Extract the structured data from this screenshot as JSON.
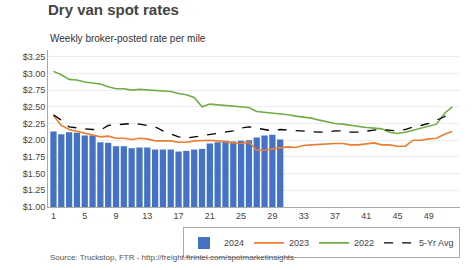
{
  "chart_data": {
    "type": "bar",
    "title": "Dry van spot rates",
    "subtitle": "Weekly broker-posted rate per mile",
    "annotations": [
      "Source: Truckstop, FTR - http://freight.ftrintel.com/spotmarketinsights"
    ],
    "xlim": [
      0.3,
      53
    ],
    "xticks": [
      1,
      5,
      9,
      13,
      17,
      21,
      25,
      29,
      33,
      37,
      41,
      45,
      49
    ],
    "ylim": [
      1.0,
      3.35
    ],
    "yticks": [
      {
        "value": 1.0,
        "label": "$1.00"
      },
      {
        "value": 1.25,
        "label": "$1.25"
      },
      {
        "value": 1.5,
        "label": "$1.50"
      },
      {
        "value": 1.75,
        "label": "$1.75"
      },
      {
        "value": 2.0,
        "label": "$2.00"
      },
      {
        "value": 2.25,
        "label": "$2.25"
      },
      {
        "value": 2.5,
        "label": "$2.50"
      },
      {
        "value": 2.75,
        "label": "$2.75"
      },
      {
        "value": 3.0,
        "label": "$3.00"
      },
      {
        "value": 3.25,
        "label": "$3.25"
      }
    ],
    "grid": true,
    "legend": "lower right",
    "series": [
      {
        "name": "2024",
        "type": "bar",
        "color": "#4472C4",
        "x": [
          1,
          2,
          3,
          4,
          5,
          6,
          7,
          8,
          9,
          10,
          11,
          12,
          13,
          14,
          15,
          16,
          17,
          18,
          19,
          20,
          21,
          22,
          23,
          24,
          25,
          26,
          27,
          28,
          29,
          30
        ],
        "values": [
          2.13,
          2.09,
          2.12,
          2.11,
          2.07,
          2.07,
          1.97,
          1.96,
          1.91,
          1.91,
          1.88,
          1.89,
          1.89,
          1.86,
          1.86,
          1.86,
          1.83,
          1.84,
          1.86,
          1.87,
          1.95,
          1.97,
          1.99,
          1.98,
          1.99,
          2.0,
          2.04,
          2.07,
          2.08,
          2.01
        ]
      },
      {
        "name": "2023",
        "type": "line",
        "color": "#ED7D31",
        "x": [
          1,
          2,
          3,
          4,
          5,
          6,
          7,
          8,
          9,
          10,
          11,
          12,
          13,
          14,
          15,
          16,
          17,
          18,
          19,
          20,
          21,
          22,
          23,
          24,
          25,
          26,
          27,
          28,
          29,
          30,
          31,
          32,
          33,
          34,
          35,
          36,
          37,
          38,
          39,
          40,
          41,
          42,
          43,
          44,
          45,
          46,
          47,
          48,
          49,
          50,
          51,
          52
        ],
        "values": [
          2.37,
          2.22,
          2.16,
          2.13,
          2.11,
          2.08,
          2.05,
          2.06,
          2.03,
          2.03,
          2.01,
          2.03,
          2.02,
          1.99,
          1.99,
          1.99,
          1.97,
          1.97,
          1.99,
          2.0,
          2.0,
          1.99,
          1.97,
          1.96,
          1.95,
          1.97,
          1.85,
          1.85,
          1.87,
          1.88,
          1.9,
          1.89,
          1.92,
          1.93,
          1.94,
          1.94,
          1.95,
          1.95,
          1.93,
          1.93,
          1.95,
          1.96,
          1.93,
          1.93,
          1.91,
          1.91,
          2.0,
          2.0,
          2.02,
          2.03,
          2.09,
          2.13
        ]
      },
      {
        "name": "2022",
        "type": "line",
        "color": "#70AD47",
        "x": [
          1,
          2,
          3,
          4,
          5,
          6,
          7,
          8,
          9,
          10,
          11,
          12,
          13,
          14,
          15,
          16,
          17,
          18,
          19,
          20,
          21,
          22,
          23,
          24,
          25,
          26,
          27,
          28,
          29,
          30,
          31,
          32,
          33,
          34,
          35,
          36,
          37,
          38,
          39,
          40,
          41,
          42,
          43,
          44,
          45,
          46,
          47,
          48,
          49,
          50,
          51,
          52
        ],
        "values": [
          3.03,
          2.98,
          2.91,
          2.9,
          2.87,
          2.86,
          2.84,
          2.8,
          2.77,
          2.77,
          2.75,
          2.76,
          2.75,
          2.74,
          2.74,
          2.73,
          2.7,
          2.68,
          2.64,
          2.5,
          2.54,
          2.53,
          2.51,
          2.5,
          2.5,
          2.49,
          2.43,
          2.42,
          2.4,
          2.39,
          2.38,
          2.36,
          2.35,
          2.33,
          2.3,
          2.27,
          2.25,
          2.24,
          2.22,
          2.2,
          2.19,
          2.18,
          2.17,
          2.12,
          2.1,
          2.12,
          2.15,
          2.17,
          2.2,
          2.24,
          2.4,
          2.5
        ]
      },
      {
        "name": "5-Yr Avg",
        "type": "line",
        "color": "#000000",
        "line_style": "dashed",
        "x": [
          1,
          2,
          3,
          4,
          5,
          6,
          7,
          8,
          9,
          10,
          11,
          12,
          13,
          14,
          15,
          16,
          17,
          18,
          19,
          20,
          21,
          22,
          23,
          24,
          25,
          26,
          27,
          28,
          29,
          30,
          31,
          32,
          33,
          34,
          35,
          36,
          37,
          38,
          39,
          40,
          41,
          42,
          43,
          44,
          45,
          46,
          47,
          48,
          49,
          50,
          51,
          52
        ],
        "values": [
          2.38,
          2.3,
          2.2,
          2.18,
          2.17,
          2.16,
          2.15,
          2.22,
          2.23,
          2.25,
          2.25,
          2.24,
          2.22,
          2.2,
          2.14,
          2.1,
          2.05,
          2.03,
          2.05,
          2.07,
          2.08,
          2.1,
          2.12,
          2.14,
          2.18,
          2.2,
          2.18,
          2.16,
          2.14,
          2.16,
          2.15,
          2.14,
          2.14,
          2.12,
          2.12,
          2.12,
          2.14,
          2.14,
          2.12,
          2.12,
          2.14,
          2.15,
          2.16,
          2.15,
          2.14,
          2.16,
          2.2,
          2.22,
          2.25,
          2.3,
          2.35,
          2.45
        ]
      }
    ]
  }
}
